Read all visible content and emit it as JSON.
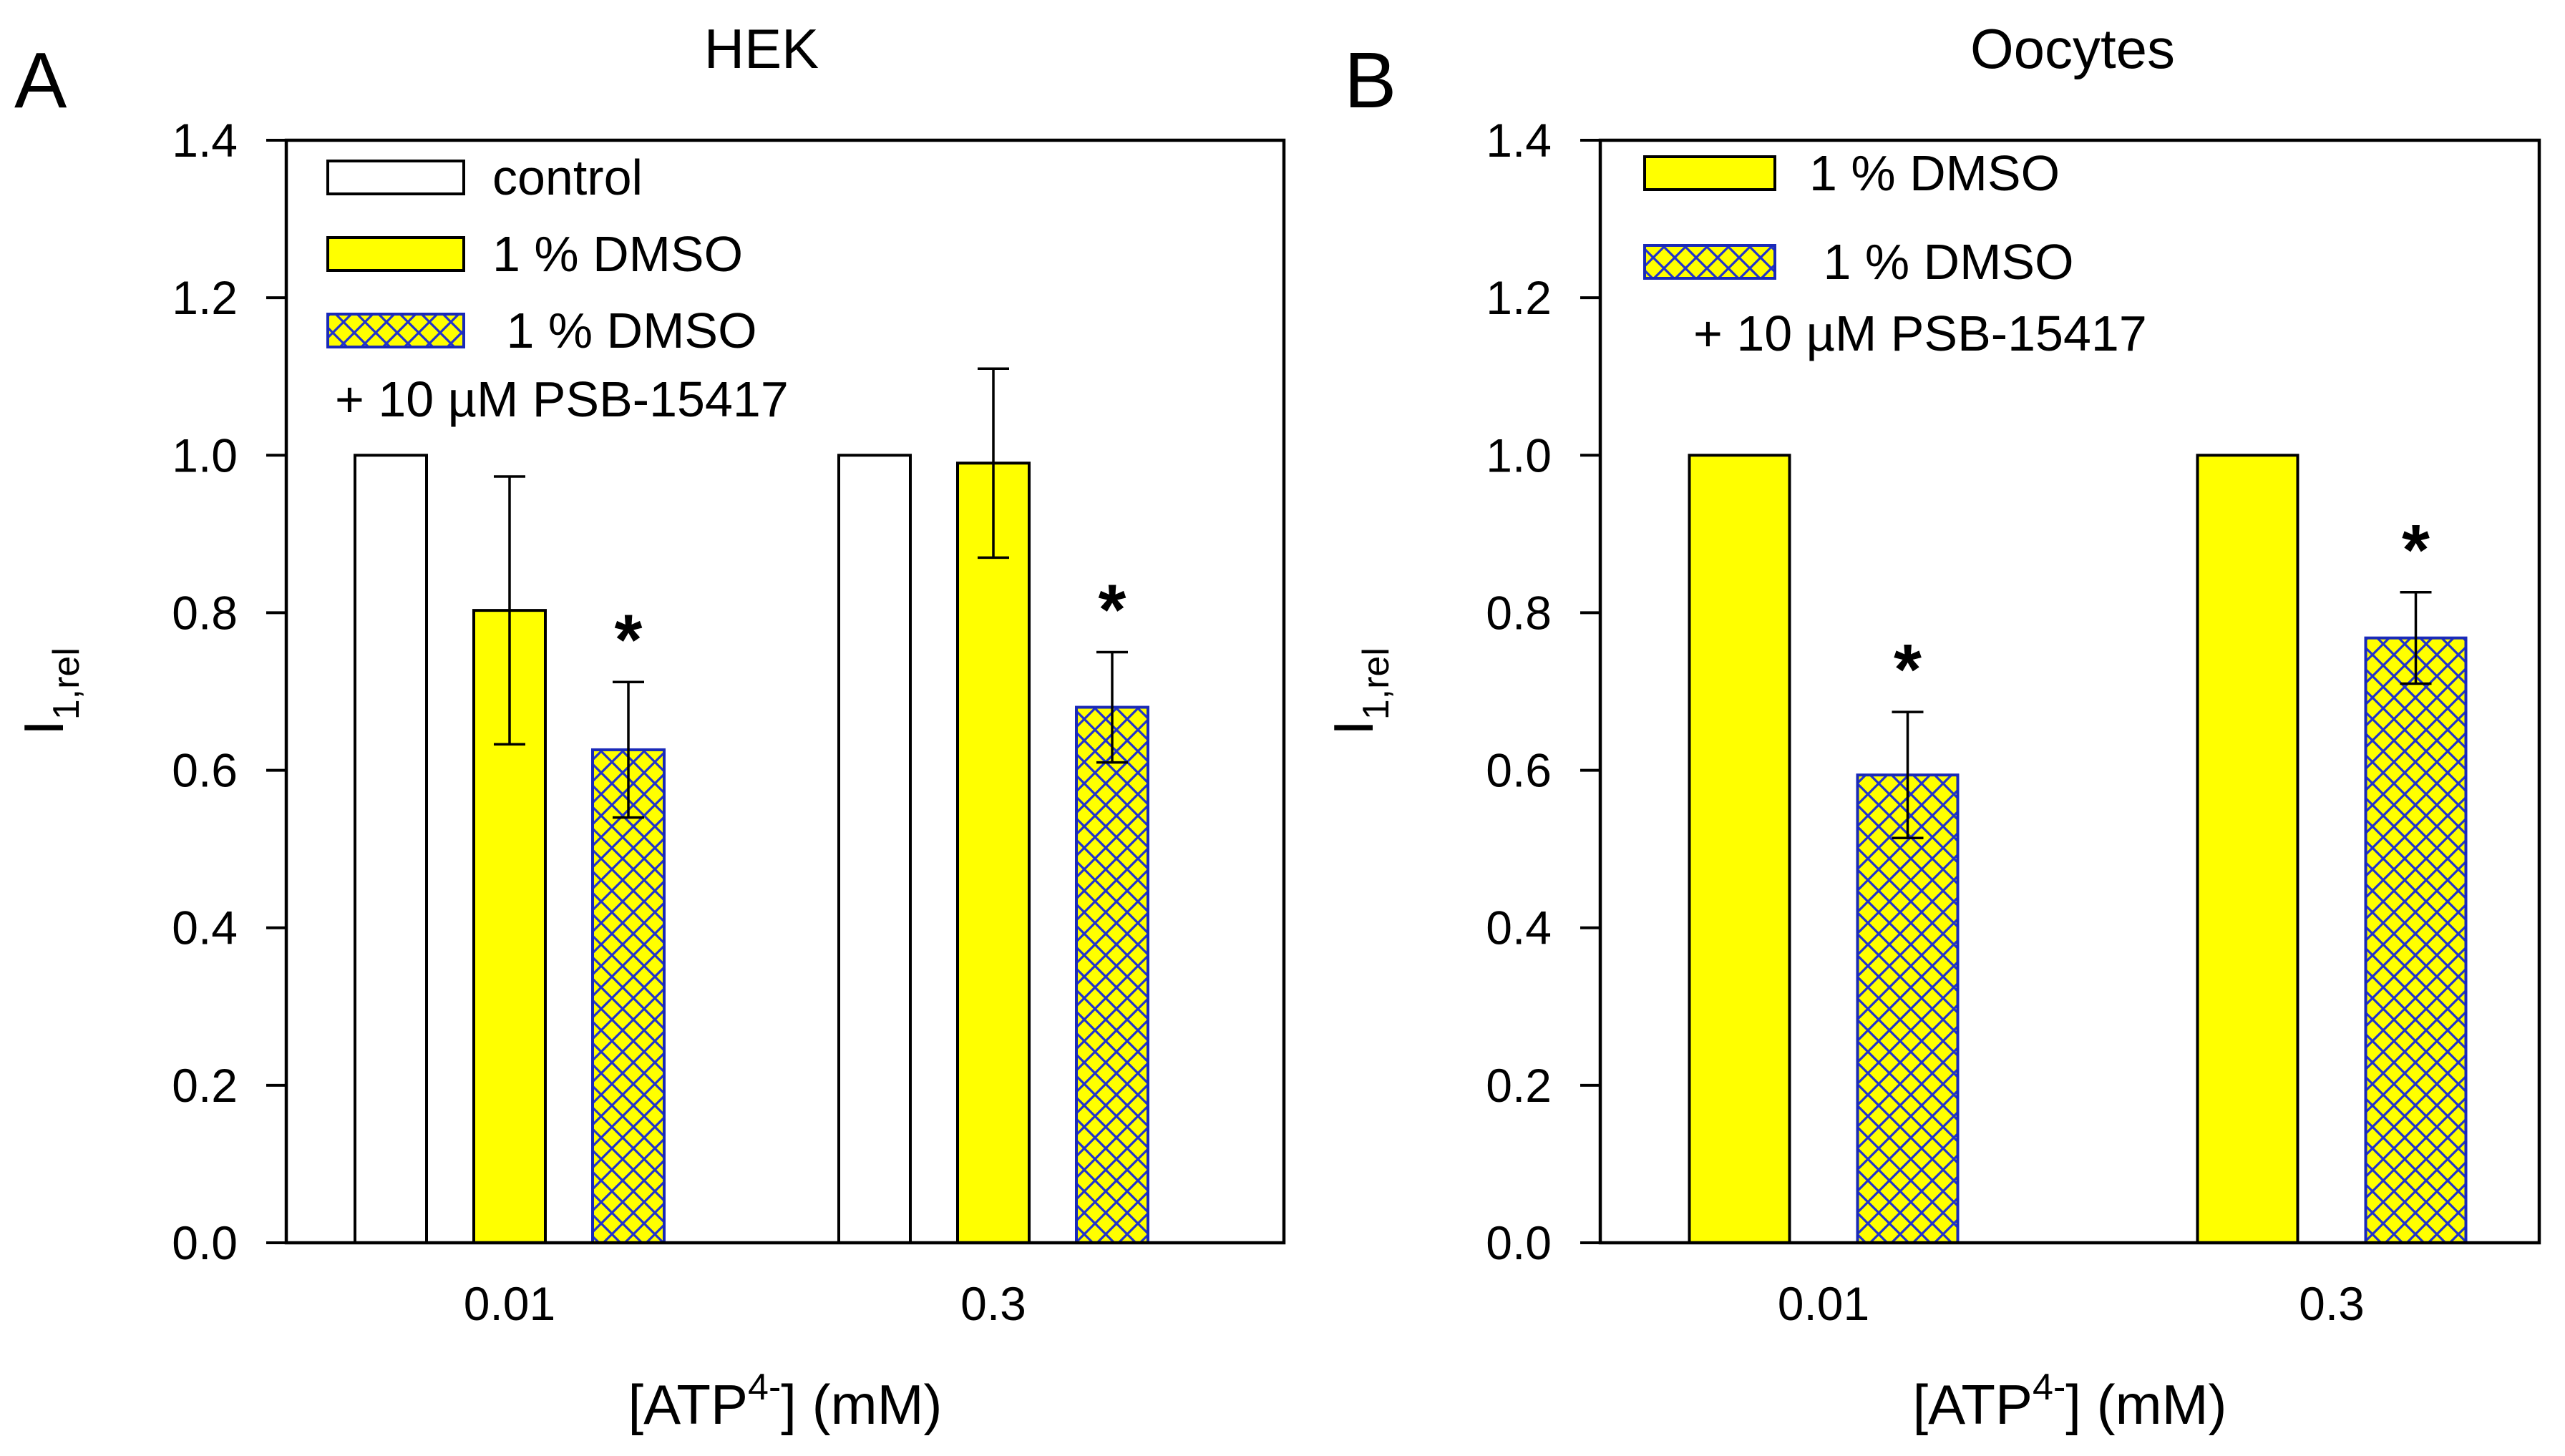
{
  "chart_data": [
    {
      "type": "bar",
      "panel_label": "A",
      "title": "HEK",
      "xlabel": {
        "prefix": "[ATP",
        "sup": "4-",
        "suffix": "] (mM)"
      },
      "ylabel": {
        "main": "I",
        "sub": "1,rel"
      },
      "categories": [
        "0.01",
        "0.3"
      ],
      "ylim": [
        0,
        1.4
      ],
      "yticks": [
        "0.0",
        "0.2",
        "0.4",
        "0.6",
        "0.8",
        "1.0",
        "1.2",
        "1.4"
      ],
      "grid": false,
      "legend_position": "top-left",
      "legend": [
        {
          "style": "open",
          "text": "control"
        },
        {
          "style": "solid",
          "text": "1 % DMSO"
        },
        {
          "style": "hatch",
          "text": " 1 % DMSO",
          "text2": "+ 10 µM PSB-15417"
        }
      ],
      "series": [
        {
          "style": "open",
          "values": [
            1.0,
            1.0
          ],
          "errors": [
            null,
            null
          ],
          "marks": [
            "",
            ""
          ]
        },
        {
          "style": "solid",
          "values": [
            0.803,
            0.99
          ],
          "errors": [
            0.17,
            0.12
          ],
          "marks": [
            "",
            ""
          ]
        },
        {
          "style": "hatch",
          "values": [
            0.626,
            0.68
          ],
          "errors": [
            0.086,
            0.07
          ],
          "marks": [
            "*",
            "*"
          ]
        }
      ]
    },
    {
      "type": "bar",
      "panel_label": "B",
      "title": "Oocytes",
      "xlabel": {
        "prefix": "[ATP",
        "sup": "4-",
        "suffix": "] (mM)"
      },
      "ylabel": {
        "main": "I",
        "sub": "1,rel"
      },
      "categories": [
        "0.01",
        "0.3"
      ],
      "ylim": [
        0,
        1.4
      ],
      "yticks": [
        "0.0",
        "0.2",
        "0.4",
        "0.6",
        "0.8",
        "1.0",
        "1.2",
        "1.4"
      ],
      "grid": false,
      "legend_position": "top-left",
      "legend": [
        {
          "style": "solid",
          "text": "1 % DMSO"
        },
        {
          "style": "hatch",
          "text": " 1 % DMSO",
          "text2": "+ 10 µM PSB-15417"
        }
      ],
      "series": [
        {
          "style": "solid",
          "values": [
            1.0,
            1.0
          ],
          "errors": [
            null,
            null
          ],
          "marks": [
            "",
            ""
          ]
        },
        {
          "style": "hatch",
          "values": [
            0.594,
            0.768
          ],
          "errors": [
            0.08,
            0.058
          ],
          "marks": [
            "*",
            "*"
          ]
        }
      ]
    }
  ],
  "colors": {
    "solid_fill": "#ffff00",
    "hatch_fill": "#ffff00",
    "hatch_line": "#2233cc",
    "open_fill": "#ffffff",
    "outline": "#000000",
    "hatch_outline": "#1a2ab8"
  }
}
